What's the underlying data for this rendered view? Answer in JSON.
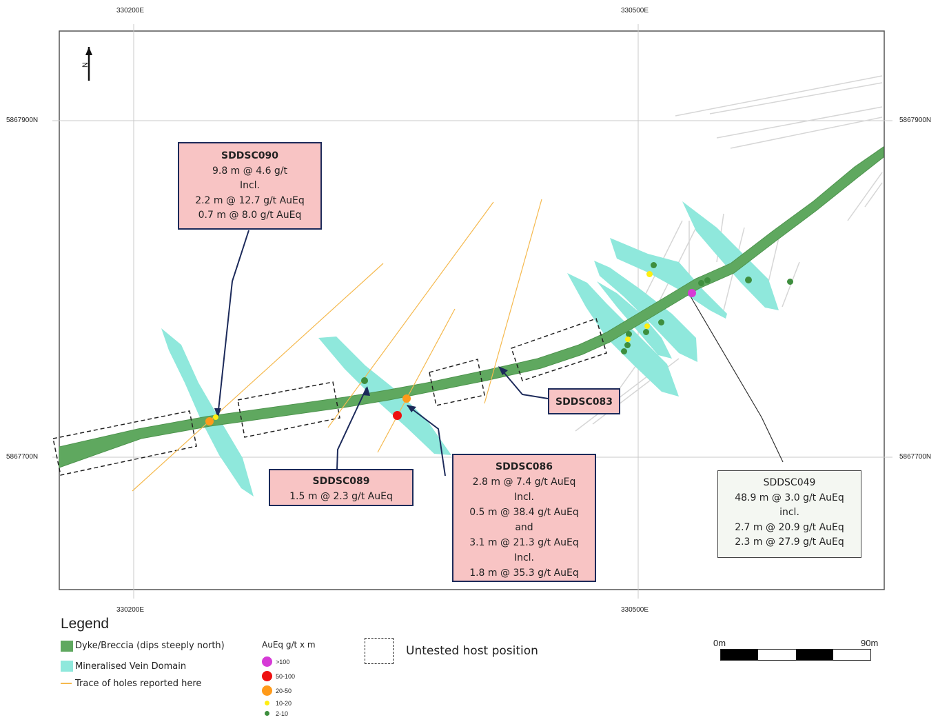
{
  "grid": {
    "easting_top": [
      "330200E",
      "330500E"
    ],
    "easting_bottom": [
      "330200E",
      "330500E"
    ],
    "northing_left": [
      "5867900N",
      "5867700N"
    ],
    "northing_right": [
      "5867900N",
      "5867700N"
    ]
  },
  "north_arrow": "N",
  "callouts": {
    "sddsc090": {
      "title": "SDDSC090",
      "lines": [
        "9.8 m @ 4.6 g/t",
        "Incl.",
        "2.2 m @ 12.7 g/t AuEq",
        "0.7 m @ 8.0 g/t AuEq"
      ]
    },
    "sddsc089": {
      "title": "SDDSC089",
      "lines": [
        "1.5 m @ 2.3 g/t AuEq"
      ]
    },
    "sddsc086": {
      "title": "SDDSC086",
      "lines": [
        "2.8 m @ 7.4 g/t AuEq",
        "Incl.",
        "0.5 m @ 38.4 g/t AuEq",
        "and",
        "3.1 m @ 21.3 g/t AuEq",
        "Incl.",
        "1.8 m @ 35.3 g/t AuEq"
      ]
    },
    "sddsc083": {
      "title": "SDDSC083"
    },
    "sddsc049": {
      "title": "SDDSC049",
      "lines": [
        "48.9 m @ 3.0 g/t AuEq",
        "incl.",
        "2.7 m @ 20.9 g/t AuEq",
        "2.3 m @ 27.9 g/t AuEq"
      ]
    }
  },
  "legend": {
    "title": "Legend",
    "dyke": "Dyke/Breccia (dips steeply north)",
    "vein": "Mineralised Vein Domain",
    "trace": "Trace of holes reported here",
    "untested": "Untested host position",
    "grade_title": "AuEq g/t x m",
    "grade_classes": [
      {
        "label": ">100",
        "color": "#d63ad6"
      },
      {
        "label": "50-100",
        "color": "#ee1111"
      },
      {
        "label": "20-50",
        "color": "#ff9a1a"
      },
      {
        "label": "10-20",
        "color": "#ffee11"
      },
      {
        "label": "2-10",
        "color": "#3e8e3e"
      }
    ]
  },
  "scale_bar": {
    "start": "0m",
    "end": "90m"
  },
  "colors": {
    "dyke": "#5fa85f",
    "vein": "#8fe8dc",
    "trace": "#f5b94e",
    "callout_fill": "#f8c4c4",
    "callout_border": "#1c2a5a"
  }
}
